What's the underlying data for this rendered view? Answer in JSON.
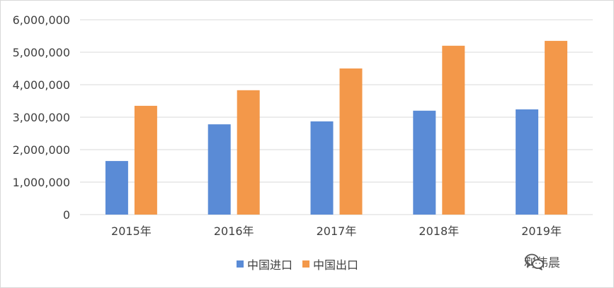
{
  "chart_data": {
    "type": "bar",
    "categories": [
      "2015年",
      "2016年",
      "2017年",
      "2018年",
      "2019年"
    ],
    "series": [
      {
        "name": "中国进口",
        "color": "#5a8bd6",
        "values": [
          1650000,
          2780000,
          2870000,
          3200000,
          3240000
        ]
      },
      {
        "name": "中国出口",
        "color": "#f3984a",
        "values": [
          3350000,
          3830000,
          4500000,
          5200000,
          5350000
        ]
      }
    ],
    "ylim": [
      0,
      6000000
    ],
    "yticks": [
      0,
      1000000,
      2000000,
      3000000,
      4000000,
      5000000,
      6000000
    ],
    "ytick_labels": [
      "0",
      "1,000,000",
      "2,000,000",
      "3,000,000",
      "4,000,000",
      "5,000,000",
      "6,000,000"
    ],
    "grid": true,
    "legend": "bottom",
    "title": "",
    "xlabel": "",
    "ylabel": ""
  },
  "watermark": {
    "text": "利伟晨",
    "icon": "wechat-icon"
  },
  "colors": {
    "grid": "#d9d9d9",
    "text": "#404040"
  }
}
